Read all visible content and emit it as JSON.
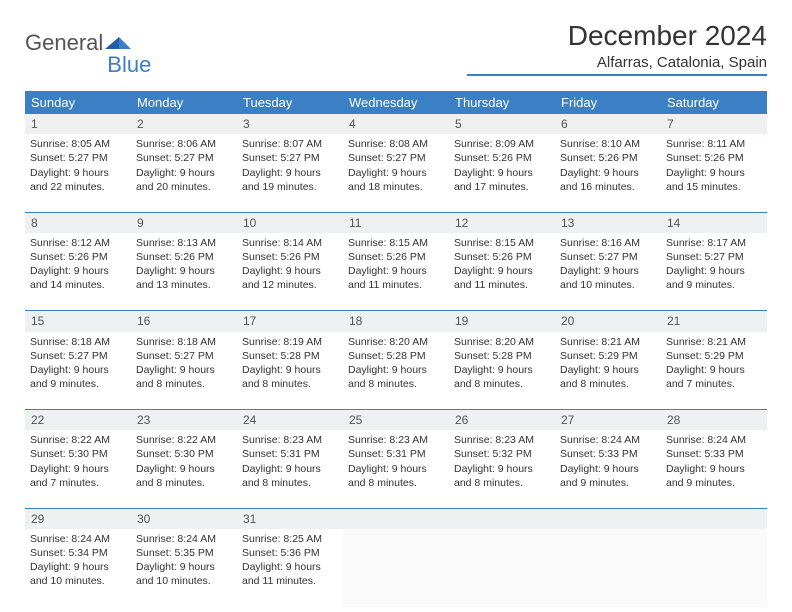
{
  "logo": {
    "general": "General",
    "blue": "Blue"
  },
  "title": "December 2024",
  "location": "Alfarras, Catalonia, Spain",
  "colors": {
    "accent": "#3b7fc4",
    "header_bg": "#3b7fc4",
    "daynum_bg": "#eef0f2",
    "text": "#333333",
    "background": "#ffffff"
  },
  "weekdays": [
    "Sunday",
    "Monday",
    "Tuesday",
    "Wednesday",
    "Thursday",
    "Friday",
    "Saturday"
  ],
  "weeks": [
    [
      {
        "n": "1",
        "sr": "8:05 AM",
        "ss": "5:27 PM",
        "dl": "9 hours and 22 minutes."
      },
      {
        "n": "2",
        "sr": "8:06 AM",
        "ss": "5:27 PM",
        "dl": "9 hours and 20 minutes."
      },
      {
        "n": "3",
        "sr": "8:07 AM",
        "ss": "5:27 PM",
        "dl": "9 hours and 19 minutes."
      },
      {
        "n": "4",
        "sr": "8:08 AM",
        "ss": "5:27 PM",
        "dl": "9 hours and 18 minutes."
      },
      {
        "n": "5",
        "sr": "8:09 AM",
        "ss": "5:26 PM",
        "dl": "9 hours and 17 minutes."
      },
      {
        "n": "6",
        "sr": "8:10 AM",
        "ss": "5:26 PM",
        "dl": "9 hours and 16 minutes."
      },
      {
        "n": "7",
        "sr": "8:11 AM",
        "ss": "5:26 PM",
        "dl": "9 hours and 15 minutes."
      }
    ],
    [
      {
        "n": "8",
        "sr": "8:12 AM",
        "ss": "5:26 PM",
        "dl": "9 hours and 14 minutes."
      },
      {
        "n": "9",
        "sr": "8:13 AM",
        "ss": "5:26 PM",
        "dl": "9 hours and 13 minutes."
      },
      {
        "n": "10",
        "sr": "8:14 AM",
        "ss": "5:26 PM",
        "dl": "9 hours and 12 minutes."
      },
      {
        "n": "11",
        "sr": "8:15 AM",
        "ss": "5:26 PM",
        "dl": "9 hours and 11 minutes."
      },
      {
        "n": "12",
        "sr": "8:15 AM",
        "ss": "5:26 PM",
        "dl": "9 hours and 11 minutes."
      },
      {
        "n": "13",
        "sr": "8:16 AM",
        "ss": "5:27 PM",
        "dl": "9 hours and 10 minutes."
      },
      {
        "n": "14",
        "sr": "8:17 AM",
        "ss": "5:27 PM",
        "dl": "9 hours and 9 minutes."
      }
    ],
    [
      {
        "n": "15",
        "sr": "8:18 AM",
        "ss": "5:27 PM",
        "dl": "9 hours and 9 minutes."
      },
      {
        "n": "16",
        "sr": "8:18 AM",
        "ss": "5:27 PM",
        "dl": "9 hours and 8 minutes."
      },
      {
        "n": "17",
        "sr": "8:19 AM",
        "ss": "5:28 PM",
        "dl": "9 hours and 8 minutes."
      },
      {
        "n": "18",
        "sr": "8:20 AM",
        "ss": "5:28 PM",
        "dl": "9 hours and 8 minutes."
      },
      {
        "n": "19",
        "sr": "8:20 AM",
        "ss": "5:28 PM",
        "dl": "9 hours and 8 minutes."
      },
      {
        "n": "20",
        "sr": "8:21 AM",
        "ss": "5:29 PM",
        "dl": "9 hours and 8 minutes."
      },
      {
        "n": "21",
        "sr": "8:21 AM",
        "ss": "5:29 PM",
        "dl": "9 hours and 7 minutes."
      }
    ],
    [
      {
        "n": "22",
        "sr": "8:22 AM",
        "ss": "5:30 PM",
        "dl": "9 hours and 7 minutes."
      },
      {
        "n": "23",
        "sr": "8:22 AM",
        "ss": "5:30 PM",
        "dl": "9 hours and 8 minutes."
      },
      {
        "n": "24",
        "sr": "8:23 AM",
        "ss": "5:31 PM",
        "dl": "9 hours and 8 minutes."
      },
      {
        "n": "25",
        "sr": "8:23 AM",
        "ss": "5:31 PM",
        "dl": "9 hours and 8 minutes."
      },
      {
        "n": "26",
        "sr": "8:23 AM",
        "ss": "5:32 PM",
        "dl": "9 hours and 8 minutes."
      },
      {
        "n": "27",
        "sr": "8:24 AM",
        "ss": "5:33 PM",
        "dl": "9 hours and 9 minutes."
      },
      {
        "n": "28",
        "sr": "8:24 AM",
        "ss": "5:33 PM",
        "dl": "9 hours and 9 minutes."
      }
    ],
    [
      {
        "n": "29",
        "sr": "8:24 AM",
        "ss": "5:34 PM",
        "dl": "9 hours and 10 minutes."
      },
      {
        "n": "30",
        "sr": "8:24 AM",
        "ss": "5:35 PM",
        "dl": "9 hours and 10 minutes."
      },
      {
        "n": "31",
        "sr": "8:25 AM",
        "ss": "5:36 PM",
        "dl": "9 hours and 11 minutes."
      },
      null,
      null,
      null,
      null
    ]
  ],
  "labels": {
    "sunrise": "Sunrise:",
    "sunset": "Sunset:",
    "daylight": "Daylight:"
  }
}
